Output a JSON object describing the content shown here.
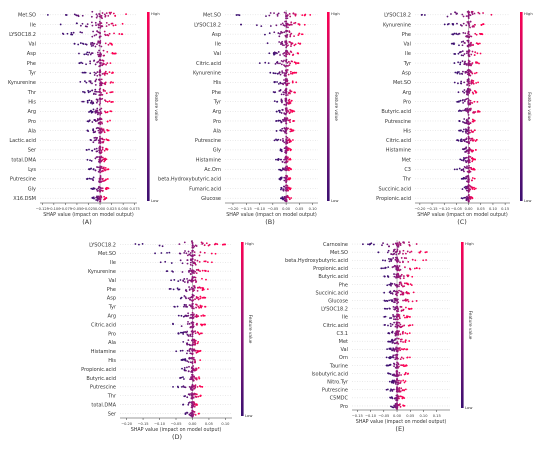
{
  "colors": {
    "high": "#ff0052",
    "low": "#3b0f70",
    "axis": "#333333",
    "zero": "#999999"
  },
  "chart_data": [
    {
      "type": "scatter",
      "panel_label": "(A)",
      "xlabel": "SHAP value (impact on model output)",
      "ylabel": "Feature value",
      "colorbar_high": "High",
      "colorbar_low": "Low",
      "xlim": [
        -0.13,
        0.08
      ],
      "xticks": [
        -0.125,
        -0.1,
        -0.075,
        -0.05,
        -0.025,
        0.0,
        0.025,
        0.05,
        0.075
      ],
      "xticklabels": [
        "−0.125",
        "−0.100",
        "−0.075",
        "−0.050",
        "−0.025",
        "0.000",
        "0.025",
        "0.050",
        "0.075"
      ],
      "features": [
        "Met.SO",
        "Ile",
        "LYSOC18.2",
        "Val",
        "Asp",
        "Phe",
        "Tyr",
        "Kynurenine",
        "Thr",
        "His",
        "Arg",
        "Pro",
        "Ala",
        "Lactic.acid",
        "Ser",
        "total.DMA",
        "Lys",
        "Putrescine",
        "Gly",
        "X16.DSM"
      ],
      "spread": [
        [
          -0.12,
          0.07
        ],
        [
          -0.09,
          0.06
        ],
        [
          -0.1,
          0.05
        ],
        [
          -0.06,
          0.04
        ],
        [
          -0.05,
          0.035
        ],
        [
          -0.05,
          0.03
        ],
        [
          -0.04,
          0.03
        ],
        [
          -0.05,
          0.03
        ],
        [
          -0.04,
          0.03
        ],
        [
          -0.04,
          0.03
        ],
        [
          -0.03,
          0.025
        ],
        [
          -0.03,
          0.025
        ],
        [
          -0.03,
          0.02
        ],
        [
          -0.04,
          0.02
        ],
        [
          -0.03,
          0.02
        ],
        [
          -0.03,
          0.02
        ],
        [
          -0.025,
          0.02
        ],
        [
          -0.03,
          0.02
        ],
        [
          -0.02,
          0.02
        ],
        [
          -0.02,
          0.015
        ]
      ]
    },
    {
      "type": "scatter",
      "panel_label": "(B)",
      "xlabel": "SHAP value (impact on model output)",
      "ylabel": "Feature value",
      "colorbar_high": "High",
      "colorbar_low": "Low",
      "xlim": [
        -0.23,
        0.12
      ],
      "xticks": [
        -0.2,
        -0.15,
        -0.1,
        -0.05,
        0.0,
        0.05,
        0.1
      ],
      "xticklabels": [
        "−0.20",
        "−0.15",
        "−0.10",
        "−0.05",
        "0.00",
        "0.05",
        "0.10"
      ],
      "features": [
        "Met.SO",
        "LYSOC18.2",
        "Asp",
        "Ile",
        "Val",
        "Citric.acid",
        "Kynurenine",
        "His",
        "Phe",
        "Tyr",
        "Arg",
        "Pro",
        "Ala",
        "Putrescine",
        "Gly",
        "Histamine",
        "Ac.Orn",
        "beta.Hydroxybutyric.acid",
        "Fumaric.acid",
        "Glucose"
      ],
      "spread": [
        [
          -0.2,
          0.1
        ],
        [
          -0.18,
          0.08
        ],
        [
          -0.1,
          0.07
        ],
        [
          -0.1,
          0.06
        ],
        [
          -0.08,
          0.05
        ],
        [
          -0.1,
          0.05
        ],
        [
          -0.06,
          0.04
        ],
        [
          -0.05,
          0.04
        ],
        [
          -0.05,
          0.04
        ],
        [
          -0.05,
          0.03
        ],
        [
          -0.04,
          0.03
        ],
        [
          -0.04,
          0.03
        ],
        [
          -0.04,
          0.03
        ],
        [
          -0.05,
          0.03
        ],
        [
          -0.03,
          0.02
        ],
        [
          -0.04,
          0.02
        ],
        [
          -0.03,
          0.02
        ],
        [
          -0.03,
          0.02
        ],
        [
          -0.03,
          0.02
        ],
        [
          -0.02,
          0.02
        ]
      ]
    },
    {
      "type": "scatter",
      "panel_label": "(C)",
      "xlabel": "SHAP value (impact on model output)",
      "ylabel": "Feature value",
      "colorbar_high": "High",
      "colorbar_low": "Low",
      "xlim": [
        -0.22,
        0.17
      ],
      "xticks": [
        -0.2,
        -0.15,
        -0.1,
        -0.05,
        0.0,
        0.05,
        0.1,
        0.15
      ],
      "xticklabels": [
        "−0.20",
        "−0.15",
        "−0.10",
        "−0.05",
        "0.00",
        "0.05",
        "0.10",
        "0.15"
      ],
      "features": [
        "LYSOC18.2",
        "Kynurenine",
        "Phe",
        "Val",
        "Ile",
        "Tyr",
        "Asp",
        "Met.SO",
        "Arg",
        "Pro",
        "Butyric.acid",
        "Putrescine",
        "His",
        "Citric.acid",
        "Histamine",
        "Met",
        "C3",
        "Thr",
        "Succinic.acid",
        "Propionic.acid"
      ],
      "spread": [
        [
          -0.2,
          0.15
        ],
        [
          -0.1,
          0.08
        ],
        [
          -0.08,
          0.06
        ],
        [
          -0.07,
          0.05
        ],
        [
          -0.07,
          0.05
        ],
        [
          -0.06,
          0.05
        ],
        [
          -0.06,
          0.04
        ],
        [
          -0.06,
          0.04
        ],
        [
          -0.05,
          0.04
        ],
        [
          -0.05,
          0.04
        ],
        [
          -0.05,
          0.06
        ],
        [
          -0.04,
          0.03
        ],
        [
          -0.04,
          0.03
        ],
        [
          -0.05,
          0.04
        ],
        [
          -0.04,
          0.03
        ],
        [
          -0.04,
          0.03
        ],
        [
          -0.06,
          0.03
        ],
        [
          -0.03,
          0.03
        ],
        [
          -0.03,
          0.03
        ],
        [
          -0.03,
          0.02
        ]
      ]
    },
    {
      "type": "scatter",
      "panel_label": "(D)",
      "xlabel": "SHAP value (impact on model output)",
      "ylabel": "Feature value",
      "colorbar_high": "High",
      "colorbar_low": "Low",
      "xlim": [
        -0.22,
        0.12
      ],
      "xticks": [
        -0.2,
        -0.15,
        -0.1,
        -0.05,
        0.0,
        0.05,
        0.1
      ],
      "xticklabels": [
        "−0.20",
        "−0.15",
        "−0.10",
        "−0.05",
        "0.00",
        "0.05",
        "0.10"
      ],
      "features": [
        "LYSOC18.2",
        "Met.SO",
        "Ile",
        "Kynurenine",
        "Val",
        "Phe",
        "Asp",
        "Tyr",
        "Arg",
        "Citric.acid",
        "Pro",
        "Ala",
        "Histamine",
        "His",
        "Propionic.acid",
        "Butyric.acid",
        "Putrescine",
        "Thr",
        "total.DMA",
        "Ser"
      ],
      "spread": [
        [
          -0.2,
          0.1
        ],
        [
          -0.12,
          0.08
        ],
        [
          -0.1,
          0.06
        ],
        [
          -0.08,
          0.05
        ],
        [
          -0.07,
          0.05
        ],
        [
          -0.07,
          0.05
        ],
        [
          -0.06,
          0.04
        ],
        [
          -0.06,
          0.04
        ],
        [
          -0.05,
          0.04
        ],
        [
          -0.08,
          0.04
        ],
        [
          -0.05,
          0.03
        ],
        [
          -0.05,
          0.03
        ],
        [
          -0.05,
          0.03
        ],
        [
          -0.04,
          0.03
        ],
        [
          -0.05,
          0.03
        ],
        [
          -0.04,
          0.03
        ],
        [
          -0.06,
          0.03
        ],
        [
          -0.04,
          0.03
        ],
        [
          -0.03,
          0.02
        ],
        [
          -0.03,
          0.02
        ]
      ]
    },
    {
      "type": "scatter",
      "panel_label": "(E)",
      "xlabel": "SHAP value (impact on model output)",
      "ylabel": "Feature value",
      "colorbar_high": "High",
      "colorbar_low": "Low",
      "xlim": [
        -0.17,
        0.2
      ],
      "xticks": [
        -0.15,
        -0.1,
        -0.05,
        0.0,
        0.05,
        0.1,
        0.15
      ],
      "xticklabels": [
        "−0.15",
        "−0.10",
        "−0.05",
        "0.00",
        "0.05",
        "0.10",
        "0.15"
      ],
      "features": [
        "Carnosine",
        "Met.SO",
        "beta.Hydroxybutyric.acid",
        "Propionic.acid",
        "Butyric.acid",
        "Phe",
        "Succinic.acid",
        "Glucose",
        "LYSOC18.2",
        "Ile",
        "Citric.acid",
        "C3.1",
        "Met",
        "Val",
        "Orn",
        "Taurine",
        "Isobutyric.acid",
        "Nitro.Tyr",
        "Putrescine",
        "C5MDC",
        "Pro"
      ],
      "spread": [
        [
          -0.15,
          0.18
        ],
        [
          -0.08,
          0.12
        ],
        [
          -0.06,
          0.12
        ],
        [
          -0.06,
          0.1
        ],
        [
          -0.05,
          0.09
        ],
        [
          -0.05,
          0.07
        ],
        [
          -0.05,
          0.08
        ],
        [
          -0.05,
          0.1
        ],
        [
          -0.05,
          0.06
        ],
        [
          -0.05,
          0.05
        ],
        [
          -0.05,
          0.06
        ],
        [
          -0.04,
          0.05
        ],
        [
          -0.04,
          0.05
        ],
        [
          -0.04,
          0.04
        ],
        [
          -0.04,
          0.05
        ],
        [
          -0.04,
          0.04
        ],
        [
          -0.04,
          0.05
        ],
        [
          -0.03,
          0.04
        ],
        [
          -0.04,
          0.04
        ],
        [
          -0.03,
          0.03
        ],
        [
          -0.03,
          0.03
        ]
      ]
    }
  ]
}
